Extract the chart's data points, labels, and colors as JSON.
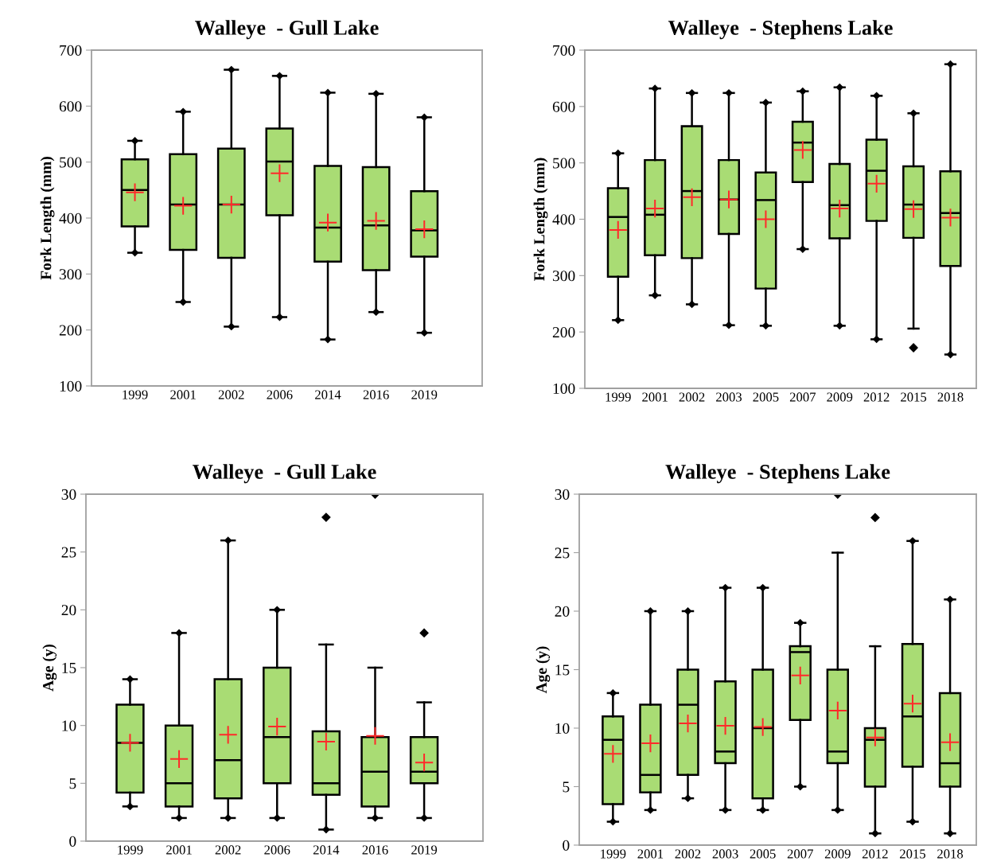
{
  "chart_data": [
    {
      "type": "box",
      "title": "Walleye  - Gull Lake",
      "ylabel": "Fork Length (mm)",
      "ylim": [
        100,
        700
      ],
      "yticks": [
        100,
        200,
        300,
        400,
        500,
        600,
        700
      ],
      "grid": false,
      "color": "#a9dc74",
      "categories": [
        "1999",
        "2001",
        "2002",
        "2006",
        "2014",
        "2016",
        "2019"
      ],
      "boxes": [
        {
          "low": 338,
          "q1": 385,
          "median": 450,
          "q3": 505,
          "high": 538
        },
        {
          "low": 250,
          "q1": 343,
          "median": 424,
          "q3": 514,
          "high": 590
        },
        {
          "low": 206,
          "q1": 329,
          "median": 424,
          "q3": 524,
          "high": 665
        },
        {
          "low": 223,
          "q1": 405,
          "median": 501,
          "q3": 560,
          "high": 654
        },
        {
          "low": 183,
          "q1": 322,
          "median": 383,
          "q3": 493,
          "high": 624
        },
        {
          "low": 232,
          "q1": 307,
          "median": 387,
          "q3": 491,
          "high": 622
        },
        {
          "low": 195,
          "q1": 331,
          "median": 378,
          "q3": 448,
          "high": 580
        }
      ],
      "series": [
        {
          "type": "scatter",
          "marker": "cross",
          "color": "#ff2a2a",
          "values": [
            446,
            422,
            424,
            480,
            392,
            395,
            380
          ]
        },
        {
          "type": "scatter",
          "marker": "diamond",
          "color": "#000000",
          "values": [
            538,
            590,
            665,
            654,
            624,
            622,
            580
          ]
        },
        {
          "type": "scatter",
          "marker": "diamond",
          "color": "#000000",
          "values": [
            338,
            250,
            206,
            223,
            183,
            232,
            195
          ]
        }
      ]
    },
    {
      "type": "box",
      "title": "Walleye  - Stephens Lake",
      "ylabel": "Fork Length (mm)",
      "ylim": [
        100,
        700
      ],
      "yticks": [
        100,
        200,
        300,
        400,
        500,
        600,
        700
      ],
      "grid": false,
      "color": "#a9dc74",
      "categories": [
        "1999",
        "2001",
        "2002",
        "2003",
        "2005",
        "2007",
        "2009",
        "2012",
        "2015",
        "2018"
      ],
      "boxes": [
        {
          "low": 221,
          "q1": 298,
          "median": 404,
          "q3": 455,
          "high": 517
        },
        {
          "low": 265,
          "q1": 336,
          "median": 408,
          "q3": 505,
          "high": 632
        },
        {
          "low": 249,
          "q1": 331,
          "median": 450,
          "q3": 565,
          "high": 624
        },
        {
          "low": 212,
          "q1": 374,
          "median": 435,
          "q3": 505,
          "high": 624
        },
        {
          "low": 211,
          "q1": 277,
          "median": 434,
          "q3": 483,
          "high": 607
        },
        {
          "low": 347,
          "q1": 466,
          "median": 536,
          "q3": 573,
          "high": 627
        },
        {
          "low": 211,
          "q1": 366,
          "median": 425,
          "q3": 498,
          "high": 634
        },
        {
          "low": 187,
          "q1": 397,
          "median": 486,
          "q3": 541,
          "high": 619
        },
        {
          "low": 206,
          "q1": 367,
          "median": 426,
          "q3": 494,
          "high": 588,
          "outliers": [
            172
          ]
        },
        {
          "low": 160,
          "q1": 317,
          "median": 411,
          "q3": 485,
          "high": 675
        }
      ],
      "series": [
        {
          "type": "scatter",
          "marker": "cross",
          "color": "#ff2a2a",
          "values": [
            381,
            419,
            439,
            435,
            400,
            523,
            419,
            463,
            418,
            403
          ]
        },
        {
          "type": "scatter",
          "marker": "diamond",
          "color": "#000000",
          "values": [
            517,
            632,
            624,
            624,
            607,
            627,
            634,
            619,
            588,
            675
          ]
        },
        {
          "type": "scatter",
          "marker": "diamond",
          "color": "#000000",
          "values": [
            221,
            265,
            249,
            212,
            211,
            347,
            211,
            187,
            null,
            160
          ]
        }
      ]
    },
    {
      "type": "box",
      "title": "Walleye  - Gull Lake",
      "ylabel": "Age (y)",
      "ylim": [
        0,
        30
      ],
      "yticks": [
        0,
        5,
        10,
        15,
        20,
        25,
        30
      ],
      "grid": false,
      "color": "#a9dc74",
      "categories": [
        "1999",
        "2001",
        "2002",
        "2006",
        "2014",
        "2016",
        "2019"
      ],
      "boxes": [
        {
          "low": 3,
          "q1": 4.2,
          "median": 8.5,
          "q3": 11.8,
          "high": 14
        },
        {
          "low": 2,
          "q1": 3,
          "median": 5,
          "q3": 10,
          "high": 18
        },
        {
          "low": 2,
          "q1": 3.7,
          "median": 7,
          "q3": 14,
          "high": 26
        },
        {
          "low": 2,
          "q1": 5,
          "median": 9,
          "q3": 15,
          "high": 20
        },
        {
          "low": 1,
          "q1": 4,
          "median": 5,
          "q3": 9.5,
          "high": 17,
          "outliers": [
            28
          ]
        },
        {
          "low": 2,
          "q1": 3,
          "median": 6,
          "q3": 9,
          "high": 15,
          "outliers": [
            30
          ]
        },
        {
          "low": 2,
          "q1": 5,
          "median": 6,
          "q3": 9,
          "high": 12,
          "outliers": [
            18
          ]
        }
      ],
      "series": [
        {
          "type": "scatter",
          "marker": "cross",
          "color": "#ff2a2a",
          "values": [
            8.5,
            7.1,
            9.2,
            9.9,
            8.6,
            9.1,
            6.8
          ]
        },
        {
          "type": "scatter",
          "marker": "diamond",
          "color": "#000000",
          "values": [
            14,
            18,
            26,
            20,
            null,
            null,
            null
          ]
        },
        {
          "type": "scatter",
          "marker": "diamond",
          "color": "#000000",
          "values": [
            3,
            2,
            2,
            2,
            1,
            2,
            2
          ]
        }
      ]
    },
    {
      "type": "box",
      "title": "Walleye  - Stephens Lake",
      "ylabel": "Age (y)",
      "ylim": [
        0,
        30
      ],
      "yticks": [
        0,
        5,
        10,
        15,
        20,
        25,
        30
      ],
      "grid": false,
      "color": "#a9dc74",
      "categories": [
        "1999",
        "2001",
        "2002",
        "2003",
        "2005",
        "2007",
        "2009",
        "2012",
        "2015",
        "2018"
      ],
      "boxes": [
        {
          "low": 2,
          "q1": 3.5,
          "median": 9,
          "q3": 11,
          "high": 13
        },
        {
          "low": 3,
          "q1": 4.5,
          "median": 6,
          "q3": 12,
          "high": 20
        },
        {
          "low": 4,
          "q1": 6,
          "median": 12,
          "q3": 15,
          "high": 20
        },
        {
          "low": 3,
          "q1": 7,
          "median": 8,
          "q3": 14,
          "high": 22
        },
        {
          "low": 3,
          "q1": 4,
          "median": 10,
          "q3": 15,
          "high": 22
        },
        {
          "low": 5,
          "q1": 10.7,
          "median": 16.5,
          "q3": 17,
          "high": 19
        },
        {
          "low": 3,
          "q1": 7,
          "median": 8,
          "q3": 15,
          "high": 25,
          "outliers": [
            30
          ]
        },
        {
          "low": 1,
          "q1": 5,
          "median": 9,
          "q3": 10,
          "high": 17,
          "outliers": [
            28
          ]
        },
        {
          "low": 2,
          "q1": 6.7,
          "median": 11,
          "q3": 17.2,
          "high": 26
        },
        {
          "low": 1,
          "q1": 5,
          "median": 7,
          "q3": 13,
          "high": 21
        }
      ],
      "series": [
        {
          "type": "scatter",
          "marker": "cross",
          "color": "#ff2a2a",
          "values": [
            7.8,
            8.7,
            10.4,
            10.2,
            10.1,
            14.5,
            11.5,
            9.2,
            12.1,
            8.8
          ]
        },
        {
          "type": "scatter",
          "marker": "diamond",
          "color": "#000000",
          "values": [
            13,
            20,
            20,
            22,
            22,
            19,
            null,
            null,
            26,
            21
          ]
        },
        {
          "type": "scatter",
          "marker": "diamond",
          "color": "#000000",
          "values": [
            2,
            3,
            4,
            3,
            3,
            5,
            3,
            1,
            2,
            1
          ]
        }
      ]
    }
  ]
}
